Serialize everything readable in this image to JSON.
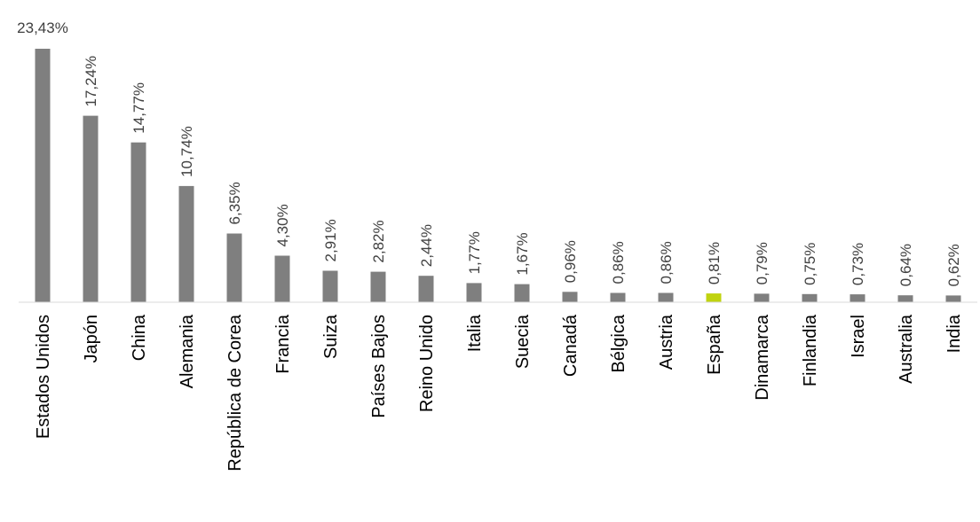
{
  "chart_data": {
    "type": "bar",
    "title": "",
    "xlabel": "",
    "ylabel": "",
    "ylim": [
      0,
      23.43
    ],
    "grid": false,
    "legend": "none",
    "colors": {
      "default": "#7f7f7f",
      "highlight": "#c0d30f",
      "axis": "#d9d9d9"
    },
    "highlight_category": "España",
    "categories": [
      "Estados Unidos",
      "Japón",
      "China",
      "Alemania",
      "República de Corea",
      "Francia",
      "Suiza",
      "Países Bajos",
      "Reino Unido",
      "Italia",
      "Suecia",
      "Canadá",
      "Bélgica",
      "Austria",
      "España",
      "Dinamarca",
      "Finlandia",
      "Israel",
      "Australia",
      "India"
    ],
    "values": [
      23.43,
      17.24,
      14.77,
      10.74,
      6.35,
      4.3,
      2.91,
      2.82,
      2.44,
      1.77,
      1.67,
      0.96,
      0.86,
      0.86,
      0.81,
      0.79,
      0.75,
      0.73,
      0.64,
      0.62
    ],
    "value_labels": [
      "23,43%",
      "17,24%",
      "14,77%",
      "10,74%",
      "6,35%",
      "4,30%",
      "2,91%",
      "2,82%",
      "2,44%",
      "1,77%",
      "1,67%",
      "0,96%",
      "0,86%",
      "0,86%",
      "0,81%",
      "0,79%",
      "0,75%",
      "0,73%",
      "0,64%",
      "0,62%"
    ]
  }
}
